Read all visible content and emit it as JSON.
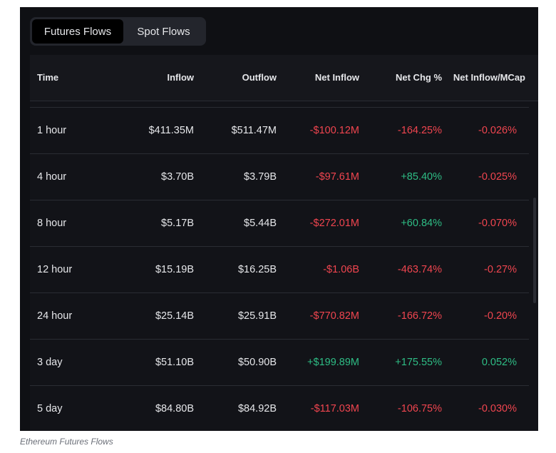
{
  "tabs": [
    {
      "label": "Futures Flows",
      "active": true
    },
    {
      "label": "Spot Flows",
      "active": false
    }
  ],
  "columns": [
    "Time",
    "Inflow",
    "Outflow",
    "Net Inflow",
    "Net Chg %",
    "Net Inflow/MCap"
  ],
  "rows": [
    {
      "time": "1 hour",
      "inflow": "$411.35M",
      "outflow": "$511.47M",
      "net_inflow": "-$100.12M",
      "net_chg": "-164.25%",
      "net_mcap": "-0.026%",
      "net_inflow_sign": "neg",
      "net_chg_sign": "neg",
      "net_mcap_sign": "neg"
    },
    {
      "time": "4 hour",
      "inflow": "$3.70B",
      "outflow": "$3.79B",
      "net_inflow": "-$97.61M",
      "net_chg": "+85.40%",
      "net_mcap": "-0.025%",
      "net_inflow_sign": "neg",
      "net_chg_sign": "pos",
      "net_mcap_sign": "neg"
    },
    {
      "time": "8 hour",
      "inflow": "$5.17B",
      "outflow": "$5.44B",
      "net_inflow": "-$272.01M",
      "net_chg": "+60.84%",
      "net_mcap": "-0.070%",
      "net_inflow_sign": "neg",
      "net_chg_sign": "pos",
      "net_mcap_sign": "neg"
    },
    {
      "time": "12 hour",
      "inflow": "$15.19B",
      "outflow": "$16.25B",
      "net_inflow": "-$1.06B",
      "net_chg": "-463.74%",
      "net_mcap": "-0.27%",
      "net_inflow_sign": "neg",
      "net_chg_sign": "neg",
      "net_mcap_sign": "neg"
    },
    {
      "time": "24 hour",
      "inflow": "$25.14B",
      "outflow": "$25.91B",
      "net_inflow": "-$770.82M",
      "net_chg": "-166.72%",
      "net_mcap": "-0.20%",
      "net_inflow_sign": "neg",
      "net_chg_sign": "neg",
      "net_mcap_sign": "neg"
    },
    {
      "time": "3 day",
      "inflow": "$51.10B",
      "outflow": "$50.90B",
      "net_inflow": "+$199.89M",
      "net_chg": "+175.55%",
      "net_mcap": "0.052%",
      "net_inflow_sign": "pos",
      "net_chg_sign": "pos",
      "net_mcap_sign": "pos"
    },
    {
      "time": "5 day",
      "inflow": "$84.80B",
      "outflow": "$84.92B",
      "net_inflow": "-$117.03M",
      "net_chg": "-106.75%",
      "net_mcap": "-0.030%",
      "net_inflow_sign": "neg",
      "net_chg_sign": "neg",
      "net_mcap_sign": "neg"
    }
  ],
  "caption": "Ethereum Futures Flows",
  "colors": {
    "negative": "#f0454f",
    "positive": "#2ebd85",
    "background": "#0f1014"
  }
}
